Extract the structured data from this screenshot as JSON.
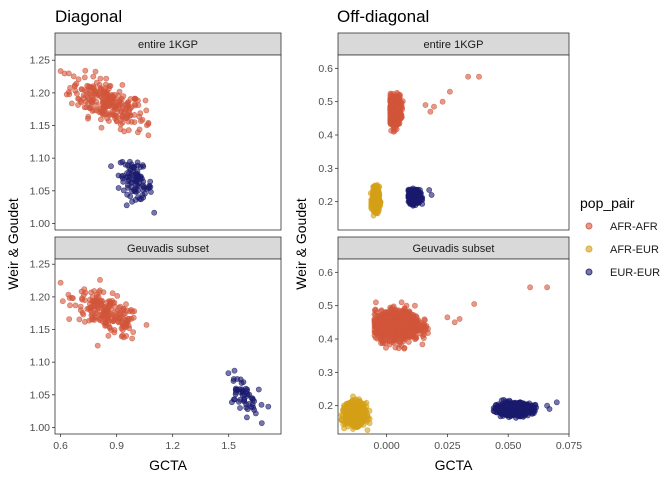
{
  "legend": {
    "title": "pop_pair",
    "placement": "right",
    "entries": [
      {
        "label": "AFR-AFR",
        "color": "#D2553A"
      },
      {
        "label": "AFR-EUR",
        "color": "#D4A017"
      },
      {
        "label": "EUR-EUR",
        "color": "#1A1A6E"
      }
    ]
  },
  "chart_data": [
    {
      "type": "scatter",
      "title": "Diagonal",
      "xlabel": "GCTA",
      "ylabel": "Weir & Goudet",
      "xlim": [
        0.57,
        1.78
      ],
      "ylim": [
        0.99,
        1.258
      ],
      "xticks": [
        0.6,
        0.9,
        1.2,
        1.5
      ],
      "xtick_labels": [
        "0.6",
        "0.9",
        "1.2",
        "1.5"
      ],
      "yticks": [
        1.0,
        1.05,
        1.1,
        1.15,
        1.2,
        1.25
      ],
      "ytick_labels": [
        "1.00",
        "1.05",
        "1.10",
        "1.15",
        "1.20",
        "1.25"
      ],
      "grid": false,
      "facets": [
        {
          "strip": "entire 1KGP",
          "clusters": [
            {
              "series": "AFR-AFR",
              "n": 240,
              "x_center": 0.85,
              "y_center": 1.185,
              "x_sd": 0.1,
              "y_sd": 0.016,
              "slope": -0.12,
              "x_range": [
                0.6,
                1.07
              ],
              "y_range": [
                1.135,
                1.24
              ]
            },
            {
              "series": "EUR-EUR",
              "n": 90,
              "x_center": 1.0,
              "y_center": 1.065,
              "x_sd": 0.045,
              "y_sd": 0.013,
              "slope": -0.15,
              "x_range": [
                0.85,
                1.15
              ],
              "y_range": [
                1.015,
                1.1
              ]
            }
          ]
        },
        {
          "strip": "Geuvadis subset",
          "clusters": [
            {
              "series": "AFR-AFR",
              "n": 200,
              "x_center": 0.85,
              "y_center": 1.175,
              "x_sd": 0.09,
              "y_sd": 0.014,
              "slope": -0.13,
              "x_range": [
                0.6,
                1.06
              ],
              "y_range": [
                1.12,
                1.23
              ]
            },
            {
              "series": "EUR-EUR",
              "n": 55,
              "x_center": 1.57,
              "y_center": 1.05,
              "x_sd": 0.045,
              "y_sd": 0.013,
              "slope": -0.2,
              "x_range": [
                1.48,
                1.75
              ],
              "y_range": [
                1.0,
                1.09
              ]
            }
          ]
        }
      ]
    },
    {
      "type": "scatter",
      "title": "Off-diagonal",
      "xlabel": "GCTA",
      "ylabel": "Weir & Goudet",
      "xlim": [
        -0.02,
        0.075
      ],
      "ylim": [
        0.115,
        0.64
      ],
      "xticks": [
        0.0,
        0.025,
        0.05,
        0.075
      ],
      "xtick_labels": [
        "0.000",
        "0.025",
        "0.050",
        "0.075"
      ],
      "yticks": [
        0.2,
        0.3,
        0.4,
        0.5,
        0.6
      ],
      "ytick_labels": [
        "0.2",
        "0.3",
        "0.4",
        "0.5",
        "0.6"
      ],
      "grid": false,
      "facets": [
        {
          "strip": "entire 1KGP",
          "clusters": [
            {
              "series": "AFR-AFR",
              "n": 500,
              "x_center": 0.0035,
              "y_center": 0.475,
              "x_sd": 0.0012,
              "y_sd": 0.022,
              "slope": 0,
              "x_range": [
                0.0015,
                0.0075
              ],
              "y_range": [
                0.41,
                0.54
              ]
            },
            {
              "series": "AFR-EUR",
              "n": 400,
              "x_center": -0.0045,
              "y_center": 0.205,
              "x_sd": 0.0007,
              "y_sd": 0.016,
              "slope": 0,
              "x_range": [
                -0.0065,
                -0.0025
              ],
              "y_range": [
                0.155,
                0.25
              ]
            },
            {
              "series": "EUR-EUR",
              "n": 450,
              "x_center": 0.0115,
              "y_center": 0.215,
              "x_sd": 0.0011,
              "y_sd": 0.01,
              "slope": 0,
              "x_range": [
                0.009,
                0.0165
              ],
              "y_range": [
                0.185,
                0.25
              ]
            }
          ],
          "outliers": [
            {
              "series": "AFR-AFR",
              "x": 0.016,
              "y": 0.49
            },
            {
              "series": "AFR-AFR",
              "x": 0.018,
              "y": 0.47
            },
            {
              "series": "AFR-AFR",
              "x": 0.0195,
              "y": 0.485
            },
            {
              "series": "AFR-AFR",
              "x": 0.023,
              "y": 0.5
            },
            {
              "series": "AFR-AFR",
              "x": 0.026,
              "y": 0.53
            },
            {
              "series": "AFR-AFR",
              "x": 0.0335,
              "y": 0.575
            },
            {
              "series": "AFR-AFR",
              "x": 0.038,
              "y": 0.575
            },
            {
              "series": "AFR-EUR",
              "x": -0.003,
              "y": 0.245
            },
            {
              "series": "EUR-EUR",
              "x": 0.0185,
              "y": 0.22
            },
            {
              "series": "EUR-EUR",
              "x": 0.0175,
              "y": 0.235
            }
          ]
        },
        {
          "strip": "Geuvadis subset",
          "clusters": [
            {
              "series": "AFR-AFR",
              "n": 900,
              "x_center": 0.0045,
              "y_center": 0.44,
              "x_sd": 0.0045,
              "y_sd": 0.022,
              "slope": 0,
              "x_range": [
                -0.005,
                0.017
              ],
              "y_range": [
                0.365,
                0.51
              ]
            },
            {
              "series": "AFR-EUR",
              "n": 700,
              "x_center": -0.013,
              "y_center": 0.175,
              "x_sd": 0.002,
              "y_sd": 0.016,
              "slope": 0,
              "x_range": [
                -0.019,
                -0.007
              ],
              "y_range": [
                0.12,
                0.235
              ]
            },
            {
              "series": "EUR-EUR",
              "n": 700,
              "x_center": 0.0525,
              "y_center": 0.19,
              "x_sd": 0.0035,
              "y_sd": 0.009,
              "slope": 0,
              "x_range": [
                0.044,
                0.063
              ],
              "y_range": [
                0.16,
                0.225
              ]
            }
          ],
          "outliers": [
            {
              "series": "AFR-AFR",
              "x": 0.025,
              "y": 0.465
            },
            {
              "series": "AFR-AFR",
              "x": 0.028,
              "y": 0.45
            },
            {
              "series": "AFR-AFR",
              "x": 0.03,
              "y": 0.46
            },
            {
              "series": "AFR-AFR",
              "x": 0.036,
              "y": 0.505
            },
            {
              "series": "AFR-AFR",
              "x": 0.059,
              "y": 0.555
            },
            {
              "series": "AFR-AFR",
              "x": 0.066,
              "y": 0.555
            },
            {
              "series": "EUR-EUR",
              "x": 0.07,
              "y": 0.21
            },
            {
              "series": "EUR-EUR",
              "x": 0.066,
              "y": 0.2
            },
            {
              "series": "EUR-EUR",
              "x": 0.067,
              "y": 0.19
            }
          ]
        }
      ]
    }
  ]
}
